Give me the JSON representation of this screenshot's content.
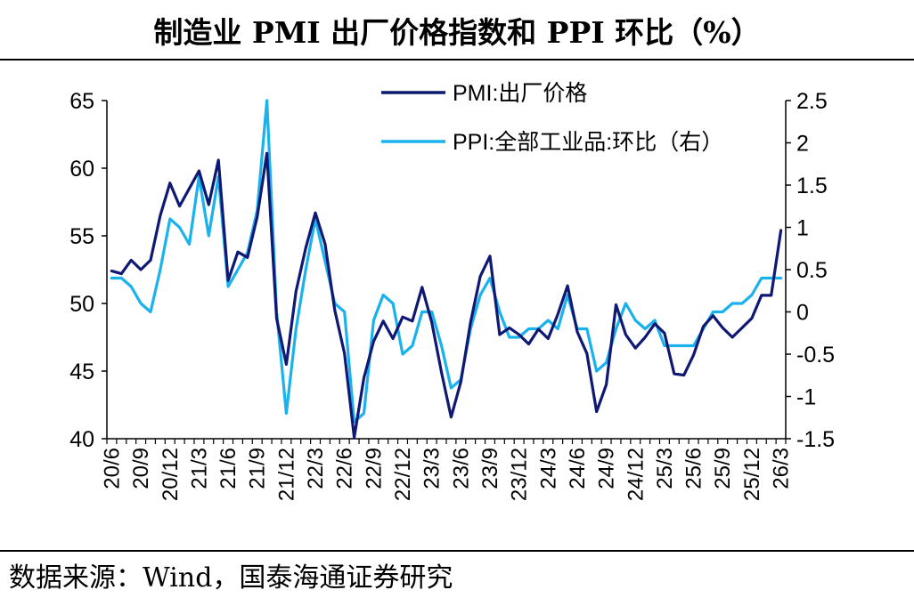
{
  "title": "制造业 PMI 出厂价格指数和 PPI 环比（%）",
  "source": "数据来源：Wind，国泰海通证券研究",
  "colors": {
    "pmi": "#0f1873",
    "ppi": "#1ab2ec",
    "axis": "#000000"
  },
  "chart_data": {
    "type": "line",
    "title": "制造业 PMI 出厂价格指数和 PPI 环比（%）",
    "legend_position": "top-right",
    "x_tick_labels": [
      "20/6",
      "20/9",
      "20/12",
      "21/3",
      "21/6",
      "21/9",
      "21/12",
      "22/3",
      "22/6",
      "22/9",
      "22/12",
      "23/3",
      "23/6",
      "23/9",
      "23/12",
      "24/3",
      "24/6",
      "24/9",
      "24/12",
      "25/3",
      "25/6",
      "25/9",
      "25/12",
      "26/3"
    ],
    "y_left": {
      "min": 40,
      "max": 65,
      "ticks": [
        "40",
        "45",
        "50",
        "55",
        "60",
        "65"
      ]
    },
    "y_right": {
      "min": -1.5,
      "max": 2.5,
      "ticks": [
        "-1.5",
        "-1",
        "-0.5",
        "0",
        "0.5",
        "1",
        "1.5",
        "2",
        "2.5"
      ]
    },
    "series": [
      {
        "name": "PMI:出厂价格",
        "axis": "left",
        "color": "#0f1873",
        "values": [
          52.4,
          52.2,
          53.2,
          52.5,
          53.2,
          56.5,
          58.9,
          57.2,
          58.5,
          59.8,
          57.3,
          60.6,
          51.7,
          53.8,
          53.4,
          56.4,
          61.1,
          48.9,
          45.5,
          50.9,
          54.1,
          56.7,
          54.4,
          49.5,
          46.3,
          40.1,
          44.5,
          47.2,
          48.7,
          47.4,
          49.0,
          48.7,
          51.2,
          48.6,
          44.9,
          41.6,
          44.2,
          48.6,
          52.0,
          53.5,
          47.7,
          48.2,
          47.7,
          47.0,
          48.1,
          47.4,
          49.2,
          51.3,
          47.9,
          46.3,
          42.0,
          44.0,
          49.9,
          47.7,
          46.7,
          47.5,
          48.5,
          47.8,
          44.8,
          44.7,
          46.2,
          48.3,
          49.1,
          48.2,
          47.5,
          48.2,
          48.9,
          50.6,
          50.6,
          55.4
        ]
      },
      {
        "name": "PPI:全部工业品:环比（右）",
        "axis": "right",
        "color": "#1ab2ec",
        "values": [
          0.4,
          0.4,
          0.3,
          0.1,
          0.0,
          0.5,
          1.1,
          1.0,
          0.8,
          1.6,
          0.9,
          1.6,
          0.3,
          0.5,
          0.7,
          1.2,
          2.5,
          0.0,
          -1.2,
          -0.2,
          0.5,
          1.1,
          0.6,
          0.1,
          0.0,
          -1.3,
          -1.2,
          -0.1,
          0.2,
          0.1,
          -0.5,
          -0.4,
          0.0,
          0.0,
          -0.4,
          -0.9,
          -0.8,
          -0.2,
          0.2,
          0.4,
          0.0,
          -0.3,
          -0.3,
          -0.2,
          -0.2,
          -0.1,
          -0.2,
          0.2,
          -0.2,
          -0.2,
          -0.7,
          -0.6,
          -0.2,
          0.1,
          -0.1,
          -0.2,
          -0.1,
          -0.4,
          -0.4,
          -0.4,
          -0.4,
          -0.2,
          0.0,
          0.0,
          0.1,
          0.1,
          0.2,
          0.4,
          0.4,
          0.4
        ]
      }
    ]
  }
}
